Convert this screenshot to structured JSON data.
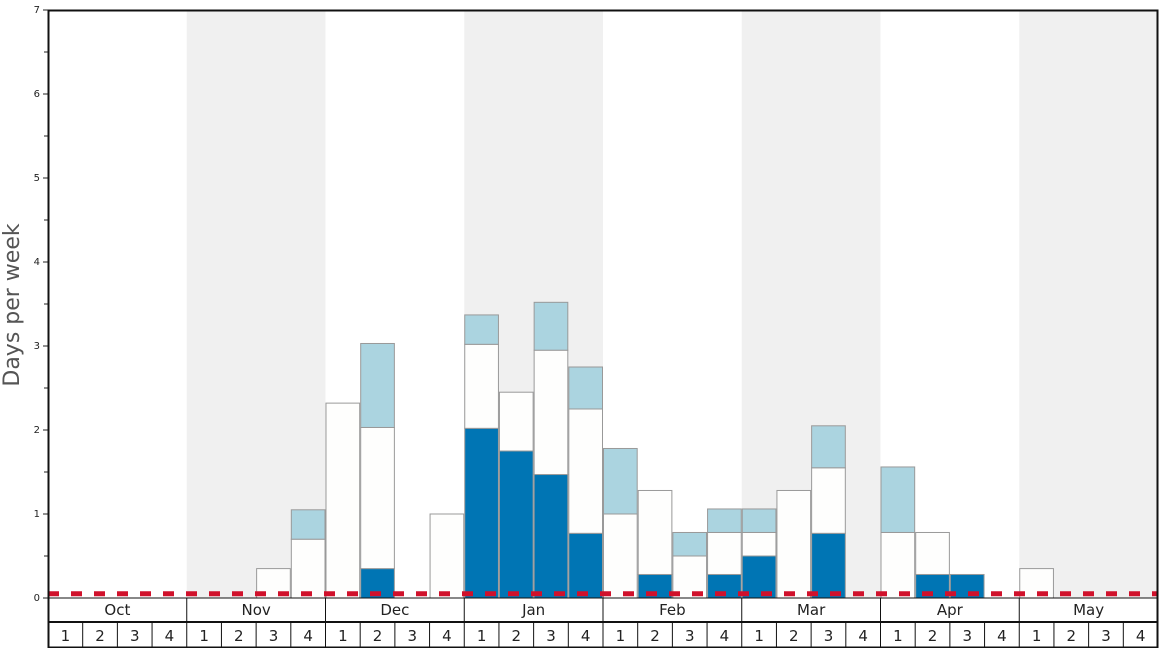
{
  "chart_data": {
    "type": "bar",
    "stacked": true,
    "ylabel": "Days per week",
    "xlabel": "",
    "title": "",
    "ylim": [
      0,
      7
    ],
    "y_ticks": [
      0,
      1,
      2,
      3,
      4,
      5,
      6,
      7
    ],
    "months": [
      "Oct",
      "Nov",
      "Dec",
      "Jan",
      "Feb",
      "Mar",
      "Apr",
      "May"
    ],
    "week_labels": [
      "1",
      "2",
      "3",
      "4"
    ],
    "shaded_months": [
      "Nov",
      "Jan",
      "Mar",
      "May"
    ],
    "reference_line": {
      "y": 0.05,
      "style": "dashed",
      "color": "#d0112b"
    },
    "colors": {
      "bottom": "#0075b4",
      "middle": "#fefefd",
      "top": "#abd4e0",
      "bar_stroke": "#999999",
      "shade": "#f0f0f0"
    },
    "weeks": [
      "Oct 1",
      "Oct 2",
      "Oct 3",
      "Oct 4",
      "Nov 1",
      "Nov 2",
      "Nov 3",
      "Nov 4",
      "Dec 1",
      "Dec 2",
      "Dec 3",
      "Dec 4",
      "Jan 1",
      "Jan 2",
      "Jan 3",
      "Jan 4",
      "Feb 1",
      "Feb 2",
      "Feb 3",
      "Feb 4",
      "Mar 1",
      "Mar 2",
      "Mar 3",
      "Mar 4",
      "Apr 1",
      "Apr 2",
      "Apr 3",
      "Apr 4",
      "May 1",
      "May 2",
      "May 3",
      "May 4"
    ],
    "series": [
      {
        "values": [
          0,
          0,
          0,
          0,
          0,
          0,
          0,
          0,
          0,
          0.35,
          0,
          0,
          2.02,
          1.75,
          1.47,
          0.77,
          0,
          0.28,
          0,
          0.28,
          0.5,
          0,
          0.77,
          0,
          0,
          0.28,
          0.28,
          0,
          0,
          0,
          0,
          0
        ]
      },
      {
        "values": [
          0,
          0,
          0,
          0,
          0,
          0,
          0.35,
          0.7,
          2.32,
          1.68,
          0,
          1.0,
          1.0,
          0.7,
          1.48,
          1.48,
          1.0,
          1.0,
          0.5,
          0.5,
          0.28,
          1.28,
          0.78,
          0,
          0.78,
          0.5,
          0,
          0,
          0.35,
          0,
          0,
          0
        ]
      },
      {
        "values": [
          0,
          0,
          0,
          0,
          0,
          0,
          0,
          0.35,
          0,
          1.0,
          0,
          0,
          0.35,
          0,
          0.57,
          0.5,
          0.78,
          0,
          0.28,
          0.28,
          0.28,
          0,
          0.5,
          0,
          0.78,
          0,
          0,
          0,
          0,
          0,
          0,
          0
        ]
      }
    ]
  }
}
